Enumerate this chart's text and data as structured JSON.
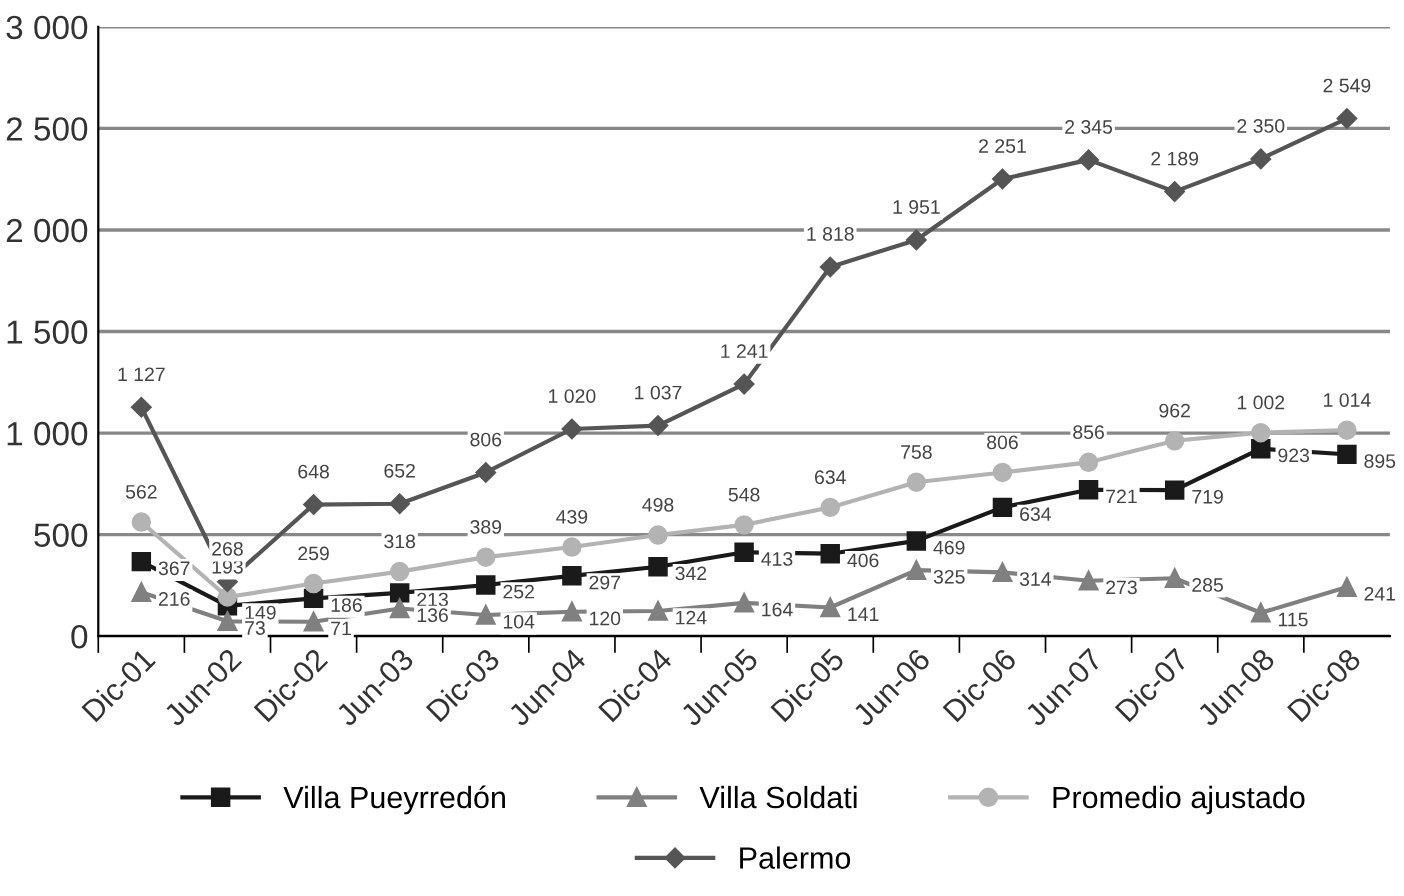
{
  "chart_data": {
    "type": "line",
    "categories": [
      "Dic-01",
      "Jun-02",
      "Dic-02",
      "Jun-03",
      "Dic-03",
      "Jun-04",
      "Dic-04",
      "Jun-05",
      "Dic-05",
      "Jun-06",
      "Dic-06",
      "Jun-07",
      "Dic-07",
      "Jun-08",
      "Dic-08"
    ],
    "ylim": [
      0,
      3000
    ],
    "yticks": [
      0,
      500,
      {
        "value": 1000,
        "label": "1 000"
      },
      {
        "value": 1500,
        "label": "1 500"
      },
      {
        "value": 2000,
        "label": "2 000"
      },
      {
        "value": 2500,
        "label": "2 500"
      },
      {
        "value": 3000,
        "label": "3 000"
      }
    ],
    "grid": "y",
    "legend": "bottom",
    "series": [
      {
        "name": "Villa Pueyrredón",
        "color": "#1a1a1a",
        "marker": "square",
        "values": [
          367,
          149,
          186,
          213,
          252,
          297,
          342,
          413,
          406,
          469,
          634,
          721,
          719,
          923,
          895
        ],
        "value_labels": [
          "367",
          "149",
          "186",
          "213",
          "252",
          "297",
          "342",
          "413",
          "406",
          "469",
          "634",
          "721",
          "719",
          "923",
          "895"
        ]
      },
      {
        "name": "Villa Soldati",
        "color": "#808080",
        "marker": "triangle",
        "values": [
          216,
          73,
          71,
          136,
          104,
          120,
          124,
          164,
          141,
          325,
          314,
          273,
          285,
          115,
          241
        ],
        "value_labels": [
          "216",
          "73",
          "71",
          "136",
          "104",
          "120",
          "124",
          "164",
          "141",
          "325",
          "314",
          "273",
          "285",
          "115",
          "241"
        ]
      },
      {
        "name": "Promedio ajustado",
        "color": "#b3b3b3",
        "marker": "circle",
        "values": [
          562,
          193,
          259,
          318,
          389,
          439,
          498,
          548,
          634,
          758,
          806,
          856,
          962,
          1002,
          1014
        ],
        "value_labels": [
          "562",
          "193",
          "259",
          "318",
          "389",
          "439",
          "498",
          "548",
          "634",
          "758",
          "806",
          "856",
          "962",
          "1 002",
          "1 014"
        ]
      },
      {
        "name": "Palermo",
        "color": "#555555",
        "marker": "diamond",
        "values": [
          1127,
          268,
          648,
          652,
          806,
          1020,
          1037,
          1241,
          1818,
          1951,
          2251,
          2345,
          2189,
          2350,
          2549
        ],
        "value_labels": [
          "1 127",
          "268",
          "648",
          "652",
          "806",
          "1 020",
          "1 037",
          "1 241",
          "1 818",
          "1 951",
          "2 251",
          "2 345",
          "2 189",
          "2 350",
          "2 549"
        ]
      }
    ]
  }
}
